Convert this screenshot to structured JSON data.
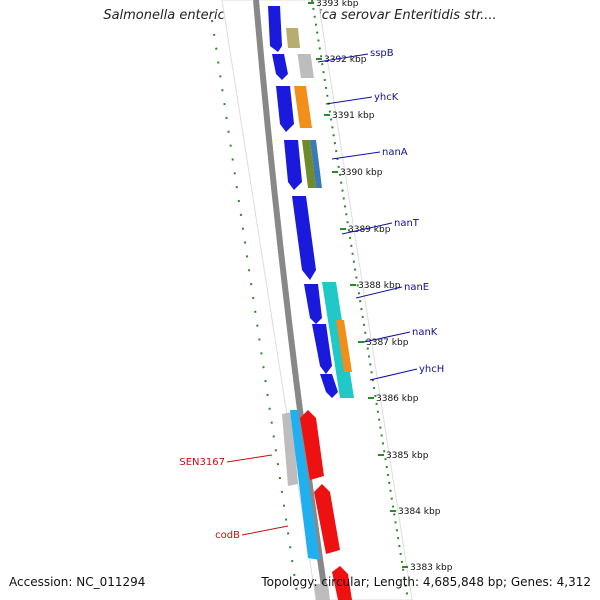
{
  "header": {
    "title": "Salmonella enterica subsp. enterica serovar Enteritidis str...."
  },
  "footer": {
    "accession": "Accession: NC_011294",
    "topology": "Topology: circular; Length: 4,685,848 bp; Genes: 4,312"
  },
  "colors": {
    "forward_label": "#1010a0",
    "reverse_label": "#c01010",
    "dots": "#2a8a2a"
  },
  "ruler": [
    {
      "label": "3393 kbp"
    },
    {
      "label": "3392 kbp"
    },
    {
      "label": "3391 kbp"
    },
    {
      "label": "3390 kbp"
    },
    {
      "label": "3389 kbp"
    },
    {
      "label": "3388 kbp"
    },
    {
      "label": "3387 kbp"
    },
    {
      "label": "3386 kbp"
    },
    {
      "label": "3385 kbp"
    },
    {
      "label": "3384 kbp"
    },
    {
      "label": "3383 kbp"
    }
  ],
  "genes": [
    {
      "name": "sspB",
      "strand": "forward"
    },
    {
      "name": "yhcK",
      "strand": "forward"
    },
    {
      "name": "nanA",
      "strand": "forward"
    },
    {
      "name": "nanT",
      "strand": "forward"
    },
    {
      "name": "nanE",
      "strand": "forward"
    },
    {
      "name": "nanK",
      "strand": "forward"
    },
    {
      "name": "yhcH",
      "strand": "forward"
    },
    {
      "name": "SEN3167",
      "strand": "reverse"
    },
    {
      "name": "codB",
      "strand": "reverse"
    }
  ]
}
